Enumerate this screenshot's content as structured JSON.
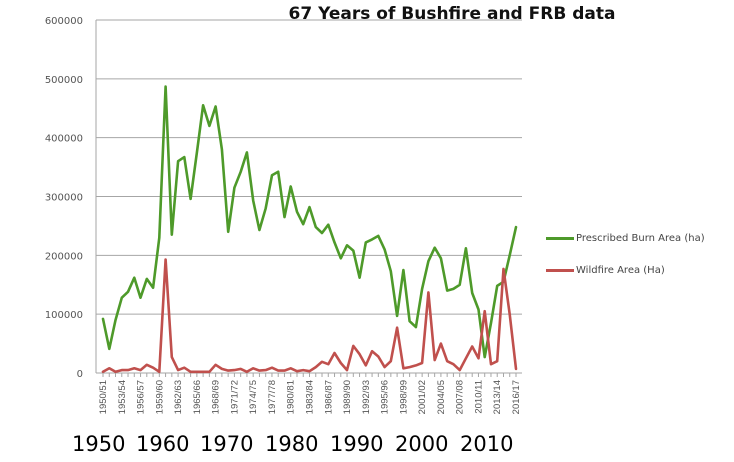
{
  "chart_data": {
    "type": "line",
    "title": "67 Years of Bushfire and FRB data",
    "xlabel": "",
    "ylabel": "",
    "ylim": [
      0,
      600000
    ],
    "yticks": [
      0,
      100000,
      200000,
      300000,
      400000,
      500000,
      600000
    ],
    "grid": true,
    "legend_position": "right",
    "x": [
      "1950/51",
      "1951/52",
      "1952/53",
      "1953/54",
      "1954/55",
      "1955/56",
      "1956/57",
      "1957/58",
      "1958/59",
      "1959/60",
      "1960/61",
      "1961/62",
      "1962/63",
      "1963/64",
      "1964/65",
      "1965/66",
      "1966/67",
      "1967/68",
      "1968/69",
      "1969/70",
      "1970/71",
      "1971/72",
      "1972/73",
      "1973/74",
      "1974/75",
      "1975/76",
      "1976/77",
      "1977/78",
      "1978/79",
      "1979/80",
      "1980/81",
      "1981/82",
      "1982/83",
      "1983/84",
      "1984/85",
      "1985/86",
      "1986/87",
      "1987/88",
      "1988/89",
      "1989/90",
      "1990/91",
      "1991/92",
      "1992/93",
      "1993/94",
      "1994/95",
      "1995/96",
      "1996/97",
      "1997/98",
      "1998/99",
      "1999/00",
      "2000/01",
      "2001/02",
      "2002/03",
      "2003/04",
      "2004/05",
      "2005/06",
      "2006/07",
      "2007/08",
      "2008/09",
      "2009/10",
      "2010/11",
      "2011/12",
      "2012/13",
      "2013/14",
      "2014/15",
      "2015/16",
      "2016/17"
    ],
    "xtick_labels": [
      "1950/51",
      "1953/54",
      "1956/57",
      "1959/60",
      "1962/63",
      "1965/66",
      "1968/69",
      "1971/72",
      "1974/75",
      "1977/78",
      "1980/81",
      "1983/84",
      "1986/87",
      "1989/90",
      "1992/93",
      "1995/96",
      "1998/99",
      "2001/02",
      "2004/05",
      "2007/08",
      "2010/11",
      "2013/14",
      "2016/17"
    ],
    "decade_annotations": [
      "1950",
      "1960",
      "1970",
      "1980",
      "1990",
      "2000",
      "2010"
    ],
    "series": [
      {
        "name": "Prescribed Burn Area (ha)",
        "color": "#4e9a2a",
        "values": [
          92000,
          41000,
          90000,
          128000,
          138000,
          162000,
          128000,
          160000,
          145000,
          230000,
          487000,
          235000,
          360000,
          367000,
          296000,
          375000,
          455000,
          420000,
          453000,
          380000,
          240000,
          315000,
          342000,
          375000,
          293000,
          243000,
          280000,
          336000,
          342000,
          265000,
          317000,
          274000,
          253000,
          282000,
          248000,
          238000,
          252000,
          222000,
          195000,
          217000,
          208000,
          162000,
          222000,
          227000,
          233000,
          210000,
          173000,
          97000,
          175000,
          88000,
          78000,
          143000,
          190000,
          213000,
          195000,
          140000,
          143000,
          150000,
          212000,
          136000,
          108000,
          27000,
          85000,
          148000,
          155000,
          200000,
          248000
        ]
      },
      {
        "name": "Wildfire Area (Ha)",
        "color": "#c0504d",
        "values": [
          2000,
          8000,
          2000,
          5000,
          5000,
          8000,
          5000,
          14000,
          9000,
          2000,
          193000,
          27000,
          5000,
          9000,
          2000,
          2000,
          2000,
          2000,
          14000,
          7000,
          4000,
          5000,
          7000,
          2000,
          8000,
          4000,
          5000,
          9000,
          4000,
          4000,
          8000,
          3000,
          5000,
          3000,
          10000,
          19000,
          15000,
          34000,
          17000,
          5000,
          46000,
          32000,
          13000,
          37000,
          28000,
          10000,
          20000,
          77000,
          8000,
          10000,
          13000,
          17000,
          137000,
          22000,
          50000,
          20000,
          15000,
          5000,
          25000,
          45000,
          25000,
          105000,
          15000,
          20000,
          177000,
          100000,
          7000
        ]
      }
    ]
  },
  "legend": {
    "items": [
      {
        "label": "Prescribed Burn Area (ha)",
        "color": "#4e9a2a"
      },
      {
        "label": "Wildfire Area (Ha)",
        "color": "#c0504d"
      }
    ]
  }
}
